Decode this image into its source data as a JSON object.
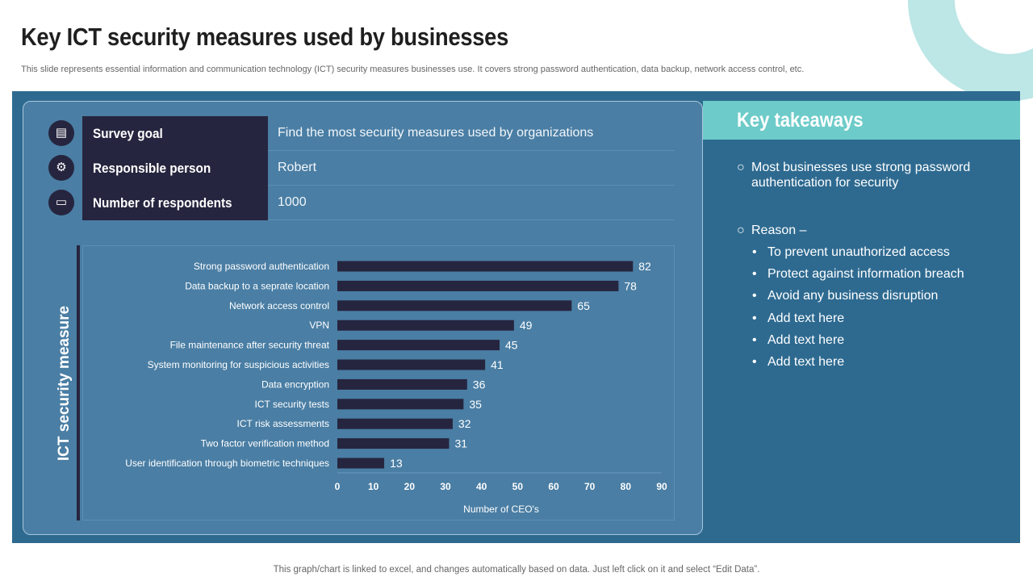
{
  "header": {
    "title": "Key ICT security measures used by businesses",
    "subtitle": "This slide represents essential information and communication technology (ICT) security measures businesses use. It covers strong password authentication, data backup, network access control, etc."
  },
  "info": [
    {
      "label": "Survey goal",
      "value": "Find the most security measures used by organizations",
      "icon": "survey-icon"
    },
    {
      "label": "Responsible person",
      "value": "Robert",
      "icon": "person-network-icon"
    },
    {
      "label": "Number of respondents",
      "value": "1000",
      "icon": "monitor-icon"
    }
  ],
  "chart_data": {
    "type": "bar",
    "orientation": "horizontal",
    "categories": [
      "Strong password authentication",
      "Data backup to a seprate location",
      "Network access control",
      "VPN",
      "File maintenance after security threat",
      "System monitoring for suspicious activities",
      "Data encryption",
      "ICT security tests",
      "ICT risk assessments",
      "Two factor  verification method",
      "User identification through biometric techniques"
    ],
    "values": [
      82,
      78,
      65,
      49,
      45,
      41,
      36,
      35,
      32,
      31,
      13
    ],
    "xlabel": "Number of CEO's",
    "ylabel": "ICT security measure",
    "xlim": [
      0,
      90
    ],
    "xticks": [
      0,
      10,
      20,
      30,
      40,
      50,
      60,
      70,
      80,
      90
    ],
    "bar_color": "#26253f",
    "grid": false,
    "legend": "none"
  },
  "takeaways": {
    "title": "Key takeaways",
    "point1": "Most businesses use strong password authentication  for security",
    "point2": "Reason –",
    "bullets": [
      "To prevent unauthorized  access",
      "Protect against information breach",
      "Avoid any business disruption",
      "Add text here",
      "Add text here",
      "Add text here"
    ]
  },
  "footer": "This graph/chart is linked to excel,  and changes automatically based on data. Just left click on it and select “Edit Data”."
}
